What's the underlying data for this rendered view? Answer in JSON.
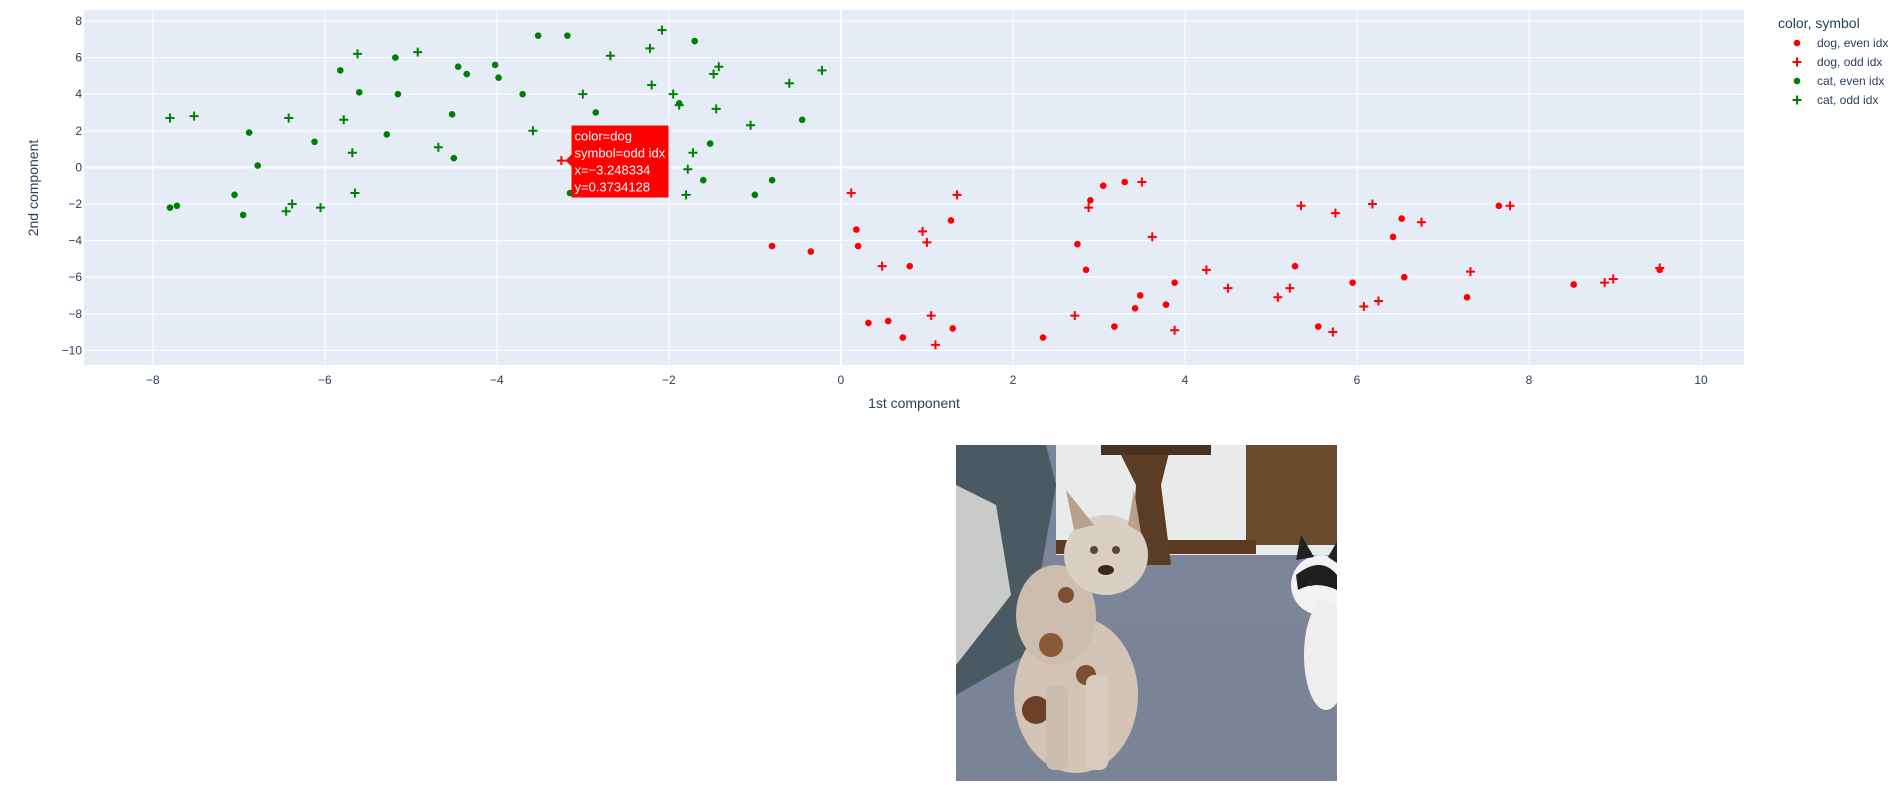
{
  "chart_data": {
    "type": "scatter",
    "xlabel": "1st component",
    "ylabel": "2nd component",
    "xlim": [
      -8.8,
      10.5
    ],
    "ylim": [
      -10.8,
      8.6
    ],
    "xticks": [
      -8,
      -6,
      -4,
      -2,
      0,
      2,
      4,
      6,
      8,
      10
    ],
    "yticks": [
      -10,
      -8,
      -6,
      -4,
      -2,
      0,
      2,
      4,
      6,
      8
    ],
    "xtick_labels": [
      "−8",
      "−6",
      "−4",
      "−2",
      "0",
      "2",
      "4",
      "6",
      "8",
      "10"
    ],
    "ytick_labels": [
      "−10",
      "−8",
      "−6",
      "−4",
      "−2",
      "0",
      "2",
      "4",
      "6",
      "8"
    ],
    "grid": true,
    "legend": {
      "title": "color, symbol",
      "position": "top-right",
      "entries": [
        "dog, even idx",
        "dog, odd idx",
        "cat, even idx",
        "cat, odd idx"
      ]
    },
    "series": [
      {
        "name": "dog, even idx",
        "color": "#ff0000",
        "symbol": "circle",
        "x": [
          -0.8,
          -0.35,
          0.18,
          0.2,
          0.32,
          0.55,
          0.72,
          0.8,
          1.28,
          1.3,
          2.35,
          2.75,
          2.85,
          2.9,
          3.05,
          3.18,
          3.3,
          3.42,
          3.48,
          3.78,
          3.88,
          5.28,
          5.55,
          5.95,
          6.42,
          6.52,
          6.55,
          7.28,
          7.65,
          8.52,
          9.52
        ],
        "y": [
          -4.3,
          -4.6,
          -3.4,
          -4.3,
          -8.5,
          -8.4,
          -9.3,
          -5.4,
          -2.9,
          -8.8,
          -9.3,
          -4.2,
          -5.6,
          -1.8,
          -1.0,
          -8.7,
          -0.8,
          -7.7,
          -7.0,
          -7.5,
          -6.3,
          -5.4,
          -8.7,
          -6.3,
          -3.8,
          -2.8,
          -6.0,
          -7.1,
          -2.1,
          -6.4,
          -5.6
        ]
      },
      {
        "name": "dog, odd idx",
        "color": "#ff0000",
        "symbol": "cross",
        "x": [
          -3.25,
          0.12,
          0.48,
          0.95,
          1.0,
          1.05,
          1.1,
          1.35,
          2.72,
          2.88,
          3.5,
          3.62,
          3.88,
          4.25,
          4.5,
          5.08,
          5.22,
          5.35,
          5.72,
          5.75,
          6.08,
          6.18,
          6.25,
          6.75,
          7.32,
          7.78,
          8.88,
          8.98,
          9.52
        ],
        "y": [
          0.37,
          -1.4,
          -5.4,
          -3.5,
          -4.1,
          -8.1,
          -9.7,
          -1.5,
          -8.1,
          -2.2,
          -0.8,
          -3.8,
          -8.9,
          -5.6,
          -6.6,
          -7.1,
          -6.6,
          -2.1,
          -9.0,
          -2.5,
          -7.6,
          -2.0,
          -7.3,
          -3.0,
          -5.7,
          -2.1,
          -6.3,
          -6.1,
          -5.5
        ]
      },
      {
        "name": "cat, even idx",
        "color": "#008000",
        "symbol": "circle",
        "x": [
          -7.8,
          -7.72,
          -7.05,
          -6.95,
          -6.88,
          -6.78,
          -6.12,
          -5.82,
          -5.6,
          -5.28,
          -5.18,
          -5.15,
          -4.52,
          -4.5,
          -4.45,
          -4.35,
          -4.02,
          -3.98,
          -3.7,
          -3.52,
          -3.18,
          -3.15,
          -2.85,
          -1.88,
          -1.7,
          -1.6,
          -1.52,
          -1.0,
          -0.8,
          -0.45
        ],
        "y": [
          -2.2,
          -2.1,
          -1.5,
          -2.6,
          1.9,
          0.1,
          1.4,
          5.3,
          4.1,
          1.8,
          6.0,
          4.0,
          2.9,
          0.5,
          5.5,
          5.1,
          5.6,
          4.9,
          4.0,
          7.2,
          7.2,
          -1.4,
          3.0,
          3.5,
          6.9,
          -0.7,
          1.3,
          -1.5,
          -0.7,
          2.6
        ]
      },
      {
        "name": "cat, odd idx",
        "color": "#008000",
        "symbol": "cross",
        "x": [
          -7.8,
          -7.52,
          -6.45,
          -6.42,
          -6.38,
          -6.05,
          -5.78,
          -5.68,
          -5.65,
          -5.62,
          -4.92,
          -4.68,
          -3.58,
          -3.0,
          -2.68,
          -2.22,
          -2.2,
          -2.08,
          -1.95,
          -1.88,
          -1.8,
          -1.78,
          -1.72,
          -1.48,
          -1.45,
          -1.42,
          -1.05,
          -0.6,
          -0.22
        ],
        "y": [
          2.7,
          2.8,
          -2.4,
          2.7,
          -2.0,
          -2.2,
          2.6,
          0.8,
          -1.4,
          6.2,
          6.3,
          1.1,
          2.0,
          4.0,
          6.1,
          6.5,
          4.5,
          7.5,
          4.0,
          3.4,
          -1.5,
          -0.1,
          0.8,
          5.1,
          3.2,
          5.5,
          2.3,
          4.6,
          5.3
        ]
      }
    ],
    "hover_label": {
      "series": "dog, odd idx",
      "x": -3.248334,
      "y": 0.3734128,
      "lines": [
        "color=dog",
        "symbol=odd idx",
        "x=−3.248334",
        "y=0.3734128"
      ]
    }
  },
  "image": {
    "description_icon": "dog-and-cat-photo-icon"
  }
}
